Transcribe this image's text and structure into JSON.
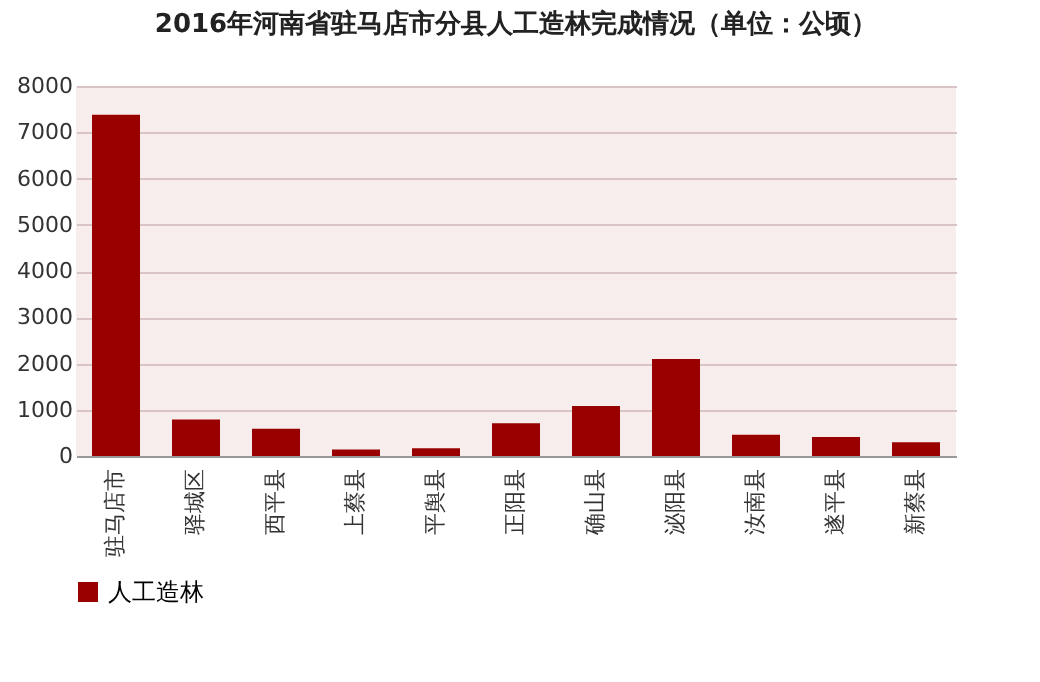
{
  "chart_data": {
    "type": "bar",
    "title": "2016年河南省驻马店市分县人工造林完成情况（单位：公顷）",
    "categories": [
      "驻马店市",
      "驿城区",
      "西平县",
      "上蔡县",
      "平舆县",
      "正阳县",
      "确山县",
      "泌阳县",
      "汝南县",
      "遂平县",
      "新蔡县"
    ],
    "series": [
      {
        "name": "人工造林",
        "color": "#990000",
        "values": [
          7380,
          790,
          590,
          140,
          170,
          710,
          1080,
          2100,
          460,
          410,
          300
        ]
      }
    ],
    "ylim": [
      0,
      8000
    ],
    "yticks": [
      0,
      1000,
      2000,
      3000,
      4000,
      5000,
      6000,
      7000,
      8000
    ],
    "grid": "y",
    "legend": "bottom"
  }
}
